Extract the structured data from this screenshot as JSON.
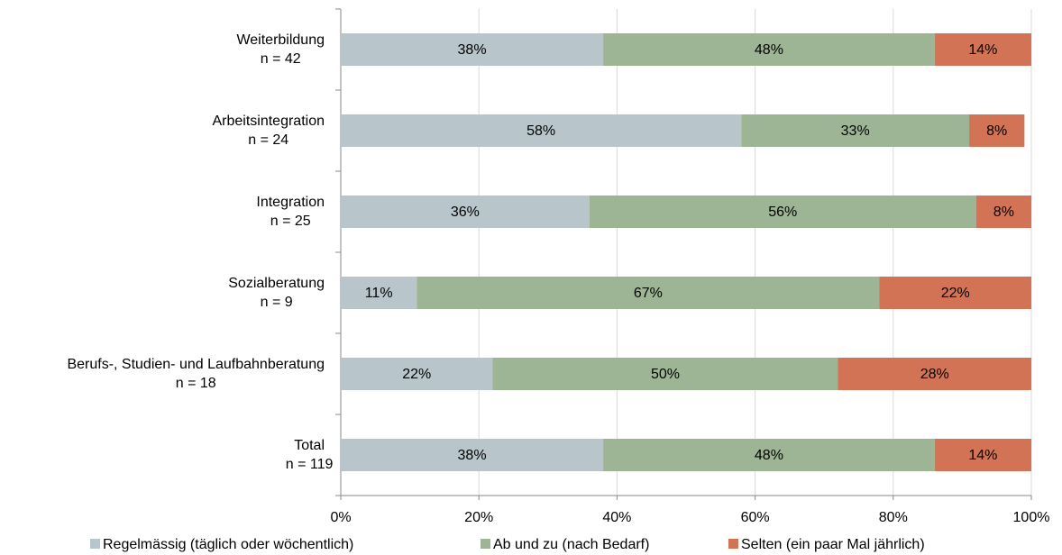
{
  "chart_data": {
    "type": "stacked_barh",
    "categories": [
      [
        "Weiterbildung",
        "n = 42"
      ],
      [
        "Arbeitsintegration",
        "n = 24"
      ],
      [
        "Integration",
        "n = 25"
      ],
      [
        "Sozialberatung",
        "n = 9"
      ],
      [
        "Berufs-, Studien- und Laufbahnberatung",
        "n = 18"
      ],
      [
        "Total",
        "n = 119"
      ]
    ],
    "series": [
      {
        "name": "Regelmässig (täglich oder wöchentlich)",
        "color": "#b8c5cb",
        "values": [
          38,
          58,
          36,
          11,
          22,
          38
        ],
        "value_labels": [
          "38%",
          "58%",
          "36%",
          "11%",
          "22%",
          "38%"
        ]
      },
      {
        "name": "Ab und zu (nach Bedarf)",
        "color": "#9db495",
        "values": [
          48,
          33,
          56,
          67,
          50,
          48
        ],
        "value_labels": [
          "48%",
          "33%",
          "56%",
          "67%",
          "50%",
          "48%"
        ]
      },
      {
        "name": "Selten (ein paar Mal jährlich)",
        "color": "#d27355",
        "values": [
          14,
          8,
          8,
          22,
          28,
          14
        ],
        "value_labels": [
          "14%",
          "8%",
          "8%",
          "22%",
          "28%",
          "14%"
        ]
      }
    ],
    "xlim": [
      0,
      100
    ],
    "xticks": [
      {
        "value": 0,
        "label": "0%"
      },
      {
        "value": 20,
        "label": "20%"
      },
      {
        "value": 40,
        "label": "40%"
      },
      {
        "value": 60,
        "label": "60%"
      },
      {
        "value": 80,
        "label": "80%"
      },
      {
        "value": 100,
        "label": "100%"
      }
    ],
    "grid": true,
    "legend": "bottom"
  }
}
